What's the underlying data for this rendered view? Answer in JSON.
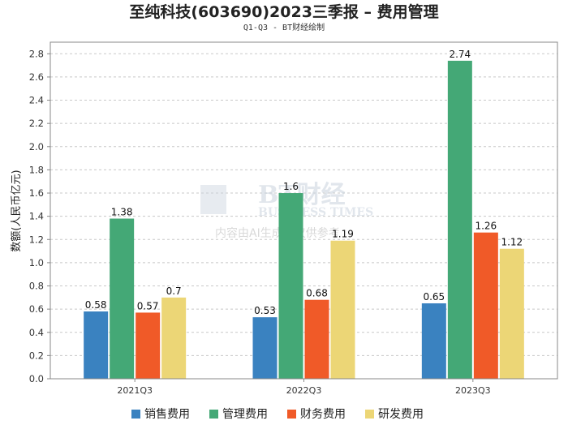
{
  "chart_data": {
    "type": "bar",
    "title": "至纯科技(603690)2023三季报 – 费用管理",
    "subtitle": "Q1-Q3 - BT财经绘制",
    "xlabel": "",
    "ylabel": "数额(人民币亿元)",
    "categories": [
      "2021Q3",
      "2022Q3",
      "2023Q3"
    ],
    "series": [
      {
        "name": "销售费用",
        "color": "#3a82c0",
        "values": [
          0.58,
          0.53,
          0.65
        ]
      },
      {
        "name": "管理费用",
        "color": "#44a876",
        "values": [
          1.38,
          1.6,
          2.74
        ]
      },
      {
        "name": "财务费用",
        "color": "#f05a28",
        "values": [
          0.57,
          0.68,
          1.26
        ]
      },
      {
        "name": "研发费用",
        "color": "#ecd676",
        "values": [
          0.7,
          1.19,
          1.12
        ]
      }
    ],
    "ylim": [
      0,
      2.9
    ],
    "yticks": [
      "0.0",
      "0.2",
      "0.4",
      "0.6",
      "0.8",
      "1.0",
      "1.2",
      "1.4",
      "1.6",
      "1.8",
      "2.0",
      "2.2",
      "2.4",
      "2.6",
      "2.8"
    ],
    "grid": true,
    "legend_position": "bottom"
  },
  "watermark": {
    "logo": "BT财经",
    "brand": "BUSINESS TIMES",
    "note": "内容由AI生成，仅供参考"
  }
}
